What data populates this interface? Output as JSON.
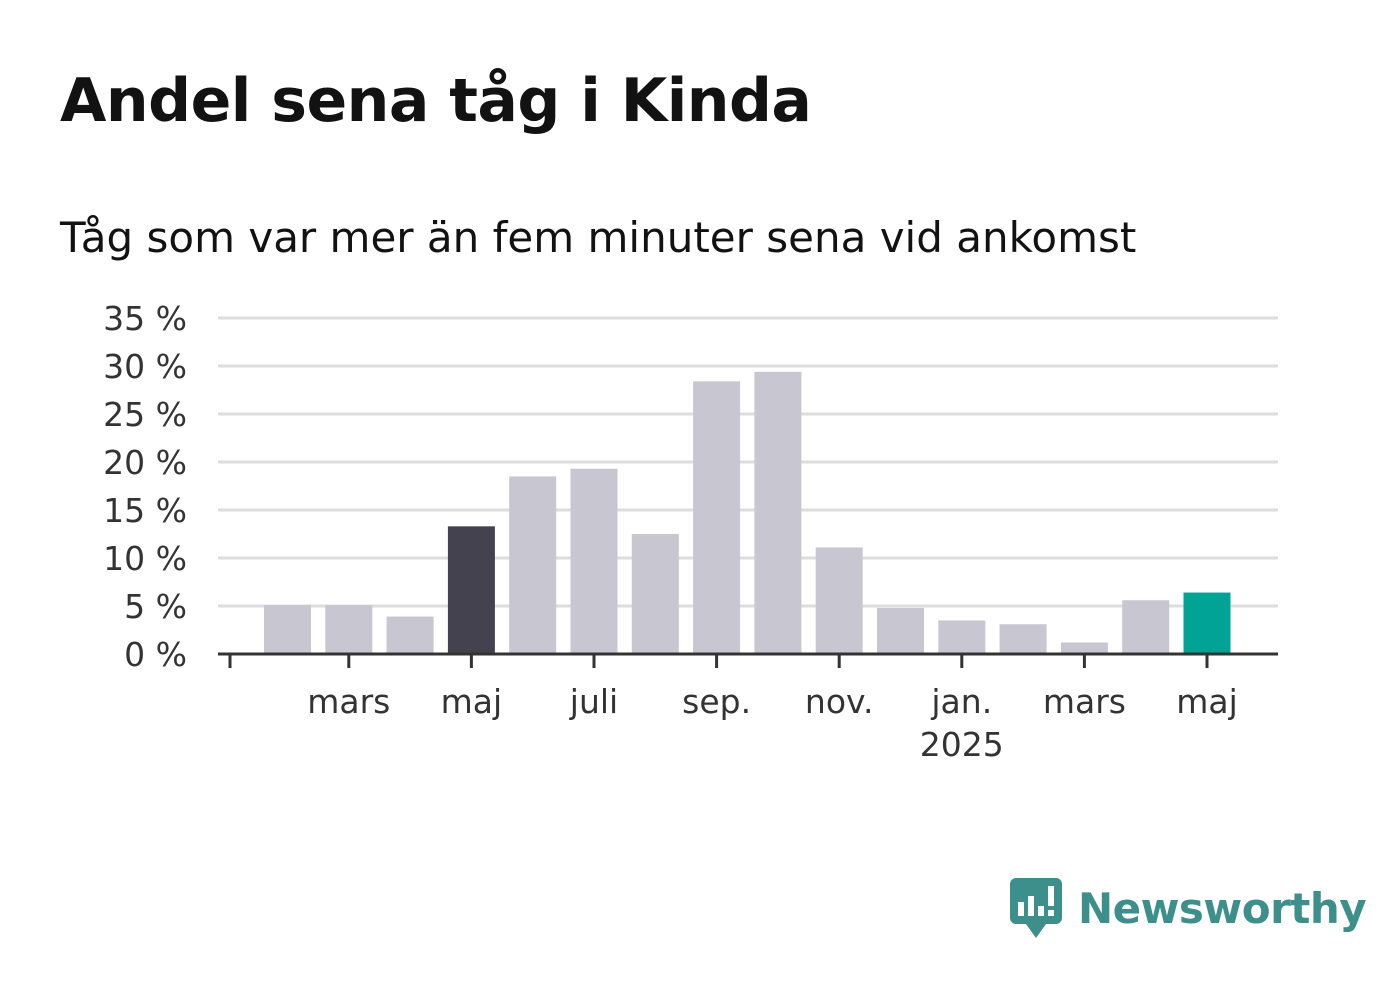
{
  "title": "Andel sena tåg i Kinda",
  "subtitle": "Tåg som var mer än fem minuter sena vid ankomst",
  "colors": {
    "default_bar": "#c8c7d1",
    "highlight_bar": "#43424e",
    "latest_bar": "#00a396",
    "grid": "#dddddd",
    "axis": "#333333",
    "brand": "#3c8f8a"
  },
  "logo": {
    "icon": "newsworthy-logo-icon",
    "text": "Newsworthy"
  },
  "chart_data": {
    "type": "bar",
    "categories": [
      "2024-02",
      "2024-03",
      "2024-04",
      "2024-05",
      "2024-06",
      "2024-07",
      "2024-08",
      "2024-09",
      "2024-10",
      "2024-11",
      "2024-12",
      "2025-01",
      "2025-02",
      "2025-03",
      "2025-04",
      "2025-05"
    ],
    "values": [
      5.1,
      5.1,
      3.9,
      13.3,
      18.5,
      19.3,
      12.5,
      28.4,
      29.4,
      11.1,
      4.8,
      3.5,
      3.1,
      1.2,
      5.6,
      6.4
    ],
    "highlight": {
      "2024-05": "highlight_bar",
      "2025-05": "latest_bar"
    },
    "ylim": [
      0,
      35
    ],
    "yticks": [
      0,
      5,
      10,
      15,
      20,
      25,
      30,
      35
    ],
    "ytick_labels": [
      "0 %",
      "5 %",
      "10 %",
      "15 %",
      "20 %",
      "25 %",
      "30 %",
      "35 %"
    ],
    "xtick_labels": [
      {
        "at": "2024-03",
        "label": "mars",
        "sub": ""
      },
      {
        "at": "2024-05",
        "label": "maj",
        "sub": ""
      },
      {
        "at": "2024-07",
        "label": "juli",
        "sub": ""
      },
      {
        "at": "2024-09",
        "label": "sep.",
        "sub": ""
      },
      {
        "at": "2024-11",
        "label": "nov.",
        "sub": ""
      },
      {
        "at": "2025-01",
        "label": "jan.",
        "sub": "2025"
      },
      {
        "at": "2025-03",
        "label": "mars",
        "sub": ""
      },
      {
        "at": "2025-05",
        "label": "maj",
        "sub": ""
      }
    ],
    "grid": true,
    "xlabel": "",
    "ylabel": ""
  }
}
